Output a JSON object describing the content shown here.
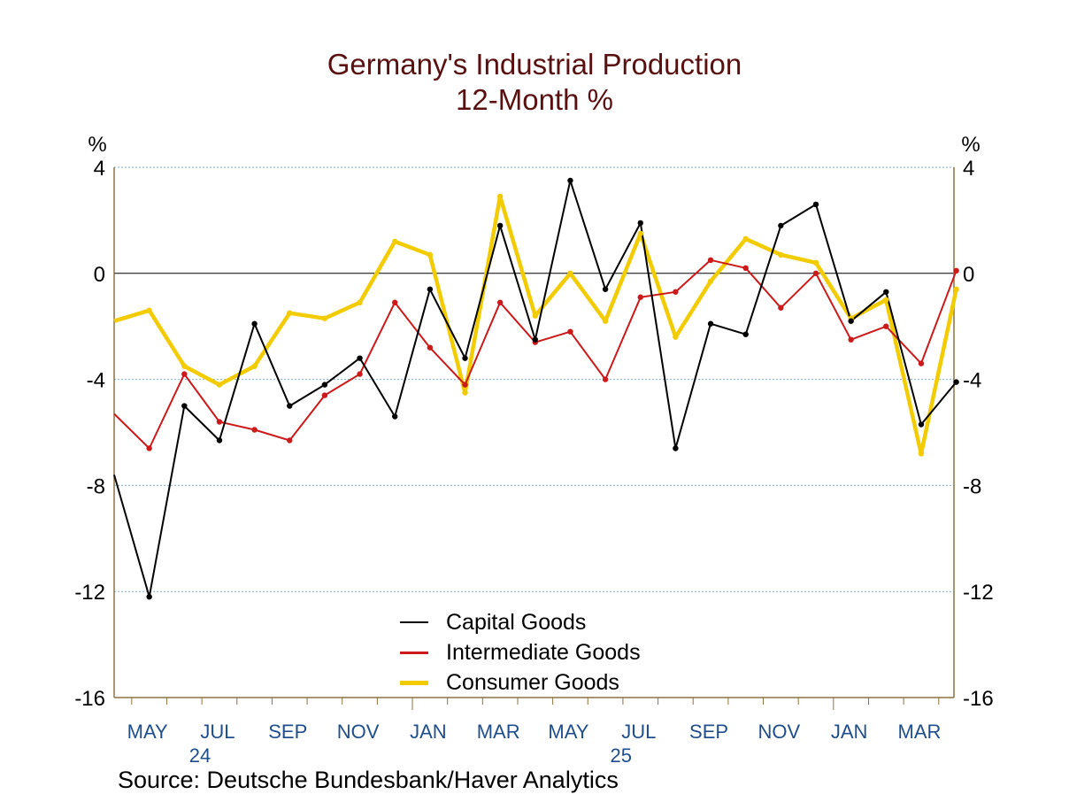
{
  "header": {
    "title_line1": "Germany's Industrial Production",
    "title_line2": "12-Month %"
  },
  "source": "Source:  Deutsche Bundesbank/Haver Analytics",
  "chart_data": {
    "type": "line",
    "title": "Germany's Industrial Production 12-Month %",
    "y_unit_left": "%",
    "y_unit_right": "%",
    "ylim": [
      -16,
      4
    ],
    "yticks": [
      4,
      0,
      -4,
      -8,
      -12,
      -16
    ],
    "grid": true,
    "legend_position": "bottom-center",
    "x": [
      "2024-04",
      "2024-05",
      "2024-06",
      "2024-07",
      "2024-08",
      "2024-09",
      "2024-10",
      "2024-11",
      "2024-12",
      "2025-01",
      "2025-02",
      "2025-03",
      "2025-04",
      "2025-05",
      "2025-06",
      "2025-07",
      "2025-08",
      "2025-09",
      "2025-10",
      "2025-11",
      "2025-12",
      "2026-01",
      "2026-02",
      "2026-03",
      "2026-04"
    ],
    "x_tick_labels": [
      {
        "label": "MAY",
        "x": "2024-05"
      },
      {
        "label": "JUL",
        "x": "2024-07"
      },
      {
        "label": "SEP",
        "x": "2024-09"
      },
      {
        "label": "NOV",
        "x": "2024-11"
      },
      {
        "label": "JAN",
        "x": "2025-01"
      },
      {
        "label": "MAR",
        "x": "2025-03"
      },
      {
        "label": "MAY",
        "x": "2025-05"
      },
      {
        "label": "JUL",
        "x": "2025-07"
      },
      {
        "label": "SEP",
        "x": "2025-09"
      },
      {
        "label": "NOV",
        "x": "2025-11"
      },
      {
        "label": "JAN",
        "x": "2026-01"
      },
      {
        "label": "MAR",
        "x": "2026-03"
      }
    ],
    "year_labels": [
      {
        "label": "24",
        "x": "2024-07"
      },
      {
        "label": "25",
        "x": "2025-07"
      }
    ],
    "series": [
      {
        "name": "Capital Goods",
        "color": "#000000",
        "values": [
          -7.6,
          -12.2,
          -5.0,
          -6.3,
          -1.9,
          -5.0,
          -4.2,
          -3.2,
          -5.4,
          -0.6,
          -3.2,
          1.8,
          -2.5,
          3.5,
          -0.6,
          1.9,
          -6.6,
          -1.9,
          -2.3,
          1.8,
          2.6,
          -1.8,
          -0.7,
          -5.7,
          -4.1
        ]
      },
      {
        "name": "Intermediate Goods",
        "color": "#cc1a1a",
        "values": [
          -5.3,
          -6.6,
          -3.8,
          -5.6,
          -5.9,
          -6.3,
          -4.6,
          -3.8,
          -1.1,
          -2.8,
          -4.2,
          -1.1,
          -2.6,
          -2.2,
          -4.0,
          -0.9,
          -0.7,
          0.5,
          0.2,
          -1.3,
          0.0,
          -2.5,
          -2.0,
          -3.4,
          0.1
        ]
      },
      {
        "name": "Consumer Goods",
        "color": "#f2cc00",
        "values": [
          -1.8,
          -1.4,
          -3.5,
          -4.2,
          -3.5,
          -1.5,
          -1.7,
          -1.1,
          1.2,
          0.7,
          -4.5,
          2.9,
          -1.6,
          0.0,
          -1.8,
          1.5,
          -2.4,
          -0.3,
          1.3,
          0.7,
          0.4,
          -1.7,
          -1.0,
          -6.8,
          -0.6
        ]
      }
    ]
  }
}
